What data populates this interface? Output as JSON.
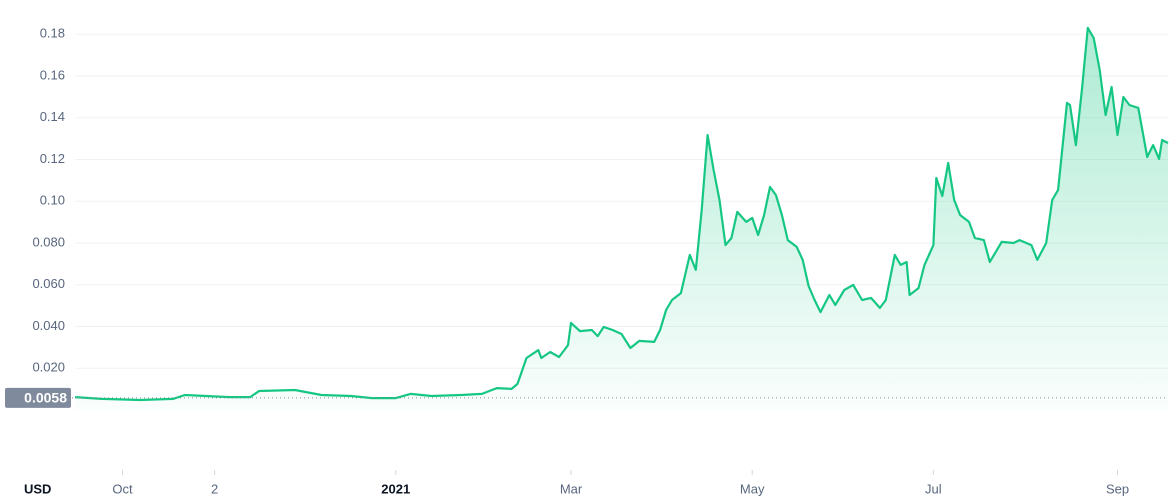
{
  "chart_data": {
    "type": "line",
    "color": "#16c784",
    "currency": "USD",
    "current_price": 0.0058,
    "x": [
      -108,
      -99,
      -86,
      -75,
      -71,
      -56,
      -49,
      -46,
      -34,
      -25,
      -15,
      -8,
      0,
      5,
      12,
      22,
      29,
      34,
      39,
      41,
      44,
      48,
      49,
      52,
      55,
      58,
      59,
      62,
      66,
      68,
      70,
      73,
      76,
      79,
      82,
      87,
      89,
      91,
      93,
      96,
      99,
      101,
      103,
      105,
      107,
      109,
      111,
      113,
      115,
      118,
      120,
      122,
      124,
      126,
      128,
      130,
      132,
      135,
      137,
      139,
      141,
      143,
      146,
      148,
      151,
      154,
      157,
      160,
      163,
      165,
      168,
      170,
      172,
      173,
      176,
      178,
      181,
      182,
      184,
      186,
      188,
      190,
      193,
      195,
      198,
      200,
      204,
      208,
      210,
      214,
      216,
      219,
      221,
      223,
      226,
      227,
      229,
      231,
      233,
      235,
      237,
      239,
      241,
      243,
      245,
      247,
      250,
      253,
      255,
      257,
      258,
      260
    ],
    "values": [
      0.0062,
      0.0053,
      0.0048,
      0.0053,
      0.0072,
      0.0062,
      0.0062,
      0.0091,
      0.0096,
      0.0072,
      0.0067,
      0.0057,
      0.0057,
      0.0077,
      0.0067,
      0.0072,
      0.0077,
      0.0105,
      0.0101,
      0.0125,
      0.0249,
      0.0287,
      0.0249,
      0.0278,
      0.0254,
      0.0311,
      0.0417,
      0.0378,
      0.0383,
      0.0354,
      0.0398,
      0.0383,
      0.0364,
      0.0297,
      0.0331,
      0.0326,
      0.0383,
      0.0479,
      0.0527,
      0.056,
      0.0743,
      0.0671,
      0.0958,
      0.1317,
      0.115,
      0.1006,
      0.079,
      0.0824,
      0.0949,
      0.0901,
      0.092,
      0.0838,
      0.0934,
      0.1068,
      0.103,
      0.0934,
      0.0814,
      0.0781,
      0.0719,
      0.0594,
      0.0527,
      0.0469,
      0.0551,
      0.0503,
      0.0575,
      0.0599,
      0.0527,
      0.0537,
      0.0489,
      0.0527,
      0.0743,
      0.0695,
      0.0709,
      0.0551,
      0.0584,
      0.0695,
      0.079,
      0.1111,
      0.1025,
      0.1183,
      0.1006,
      0.0934,
      0.0901,
      0.0824,
      0.0814,
      0.0709,
      0.0805,
      0.08,
      0.0814,
      0.079,
      0.0719,
      0.08,
      0.1006,
      0.1054,
      0.1471,
      0.1461,
      0.1269,
      0.1533,
      0.183,
      0.1782,
      0.1629,
      0.1413,
      0.1547,
      0.1317,
      0.1499,
      0.1461,
      0.1447,
      0.1212,
      0.1269,
      0.1202,
      0.1293,
      0.1279
    ],
    "xlim": [
      -108,
      260
    ],
    "xticks": [
      {
        "value": -92,
        "label": "Oct"
      },
      {
        "value": -61,
        "label": "2"
      },
      {
        "value": 0,
        "label": "2021"
      },
      {
        "value": 59,
        "label": "Mar"
      },
      {
        "value": 120,
        "label": "May"
      },
      {
        "value": 181,
        "label": "Jul"
      },
      {
        "value": 243,
        "label": "Sep"
      }
    ],
    "ylim": [
      0,
      0.1868
    ],
    "yticks": [
      {
        "value": 0.02,
        "label": "0.020"
      },
      {
        "value": 0.04,
        "label": "0.040"
      },
      {
        "value": 0.06,
        "label": "0.060"
      },
      {
        "value": 0.08,
        "label": "0.080"
      },
      {
        "value": 0.1,
        "label": "0.10"
      },
      0.12,
      0.14,
      0.16,
      0.18
    ],
    "grid": true
  }
}
